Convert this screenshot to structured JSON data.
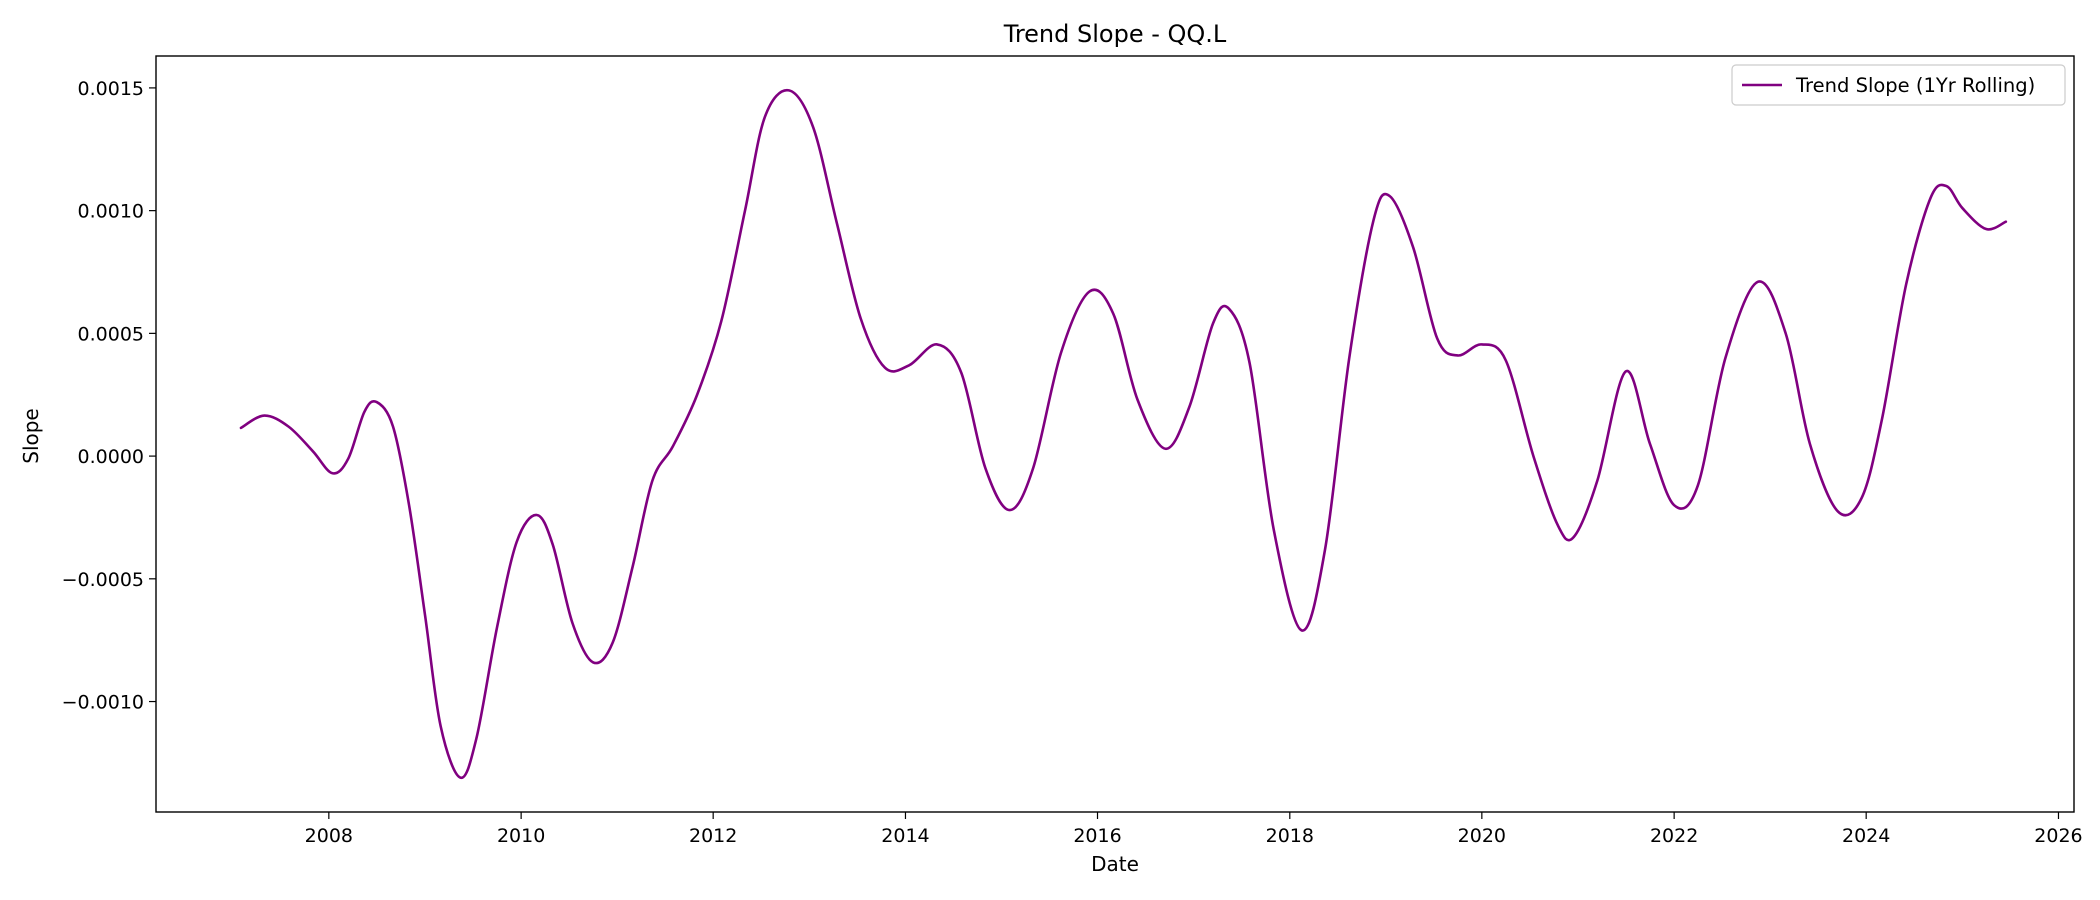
{
  "chart_data": {
    "type": "line",
    "title": "Trend Slope - QQ.L",
    "xlabel": "Date",
    "ylabel": "Slope",
    "x_scale": "time",
    "xlim": [
      "2006-03-15",
      "2026-03-01"
    ],
    "ylim": [
      -0.00145,
      0.00163
    ],
    "x_ticks": [
      "2008",
      "2010",
      "2012",
      "2014",
      "2016",
      "2018",
      "2020",
      "2022",
      "2024",
      "2026"
    ],
    "y_ticks": [
      {
        "value": -0.001,
        "label": "−0.0010"
      },
      {
        "value": -0.0005,
        "label": "−0.0005"
      },
      {
        "value": 0,
        "label": "0.0000"
      },
      {
        "value": 0.0005,
        "label": "0.0005"
      },
      {
        "value": 0.001,
        "label": "0.0010"
      },
      {
        "value": 0.0015,
        "label": "0.0015"
      }
    ],
    "grid": false,
    "legend": {
      "position": "upper right"
    },
    "series": [
      {
        "name": "Trend Slope (1Yr Rolling)",
        "color": "#800080",
        "points": [
          [
            "2007-02-01",
            0.000115
          ],
          [
            "2007-05-01",
            0.000165
          ],
          [
            "2007-08-01",
            0.00012
          ],
          [
            "2007-11-01",
            2e-05
          ],
          [
            "2008-01-15",
            -7e-05
          ],
          [
            "2008-03-15",
            -1e-05
          ],
          [
            "2008-05-15",
            0.00018
          ],
          [
            "2008-07-01",
            0.00022
          ],
          [
            "2008-09-01",
            0.00012
          ],
          [
            "2008-11-01",
            -0.0002
          ],
          [
            "2009-01-01",
            -0.00065
          ],
          [
            "2009-03-01",
            -0.0011
          ],
          [
            "2009-05-15",
            -0.00131
          ],
          [
            "2009-07-15",
            -0.00115
          ],
          [
            "2009-10-01",
            -0.0007
          ],
          [
            "2009-12-15",
            -0.00035
          ],
          [
            "2010-03-01",
            -0.00024
          ],
          [
            "2010-05-01",
            -0.00036
          ],
          [
            "2010-07-15",
            -0.00068
          ],
          [
            "2010-10-01",
            -0.00084
          ],
          [
            "2010-12-15",
            -0.00076
          ],
          [
            "2011-03-01",
            -0.00045
          ],
          [
            "2011-05-15",
            -0.0001
          ],
          [
            "2011-08-01",
            4e-05
          ],
          [
            "2011-11-01",
            0.00025
          ],
          [
            "2012-02-01",
            0.00055
          ],
          [
            "2012-05-01",
            0.001
          ],
          [
            "2012-07-15",
            0.00138
          ],
          [
            "2012-10-15",
            0.00149
          ],
          [
            "2013-01-15",
            0.00134
          ],
          [
            "2013-04-15",
            0.00095
          ],
          [
            "2013-07-15",
            0.00056
          ],
          [
            "2013-10-15",
            0.00036
          ],
          [
            "2014-01-15",
            0.00037
          ],
          [
            "2014-05-01",
            0.000455
          ],
          [
            "2014-08-01",
            0.00034
          ],
          [
            "2014-11-01",
            -5e-05
          ],
          [
            "2015-02-01",
            -0.00022
          ],
          [
            "2015-05-01",
            -5e-05
          ],
          [
            "2015-08-15",
            0.00042
          ],
          [
            "2015-12-01",
            0.00067
          ],
          [
            "2016-03-01",
            0.00058
          ],
          [
            "2016-06-01",
            0.00023
          ],
          [
            "2016-09-15",
            3e-05
          ],
          [
            "2016-12-15",
            0.0002
          ],
          [
            "2017-03-15",
            0.00054
          ],
          [
            "2017-05-15",
            0.0006
          ],
          [
            "2017-08-01",
            0.00038
          ],
          [
            "2017-11-01",
            -0.0003
          ],
          [
            "2018-02-15",
            -0.00071
          ],
          [
            "2018-05-15",
            -0.00038
          ],
          [
            "2018-08-15",
            0.0004
          ],
          [
            "2018-11-15",
            0.00096
          ],
          [
            "2019-01-15",
            0.00106
          ],
          [
            "2019-04-15",
            0.00085
          ],
          [
            "2019-07-15",
            0.00048
          ],
          [
            "2019-10-01",
            0.00041
          ],
          [
            "2020-01-01",
            0.000455
          ],
          [
            "2020-04-01",
            0.00039
          ],
          [
            "2020-07-15",
            0.0
          ],
          [
            "2020-10-15",
            -0.00028
          ],
          [
            "2020-12-15",
            -0.00033
          ],
          [
            "2021-03-15",
            -0.0001
          ],
          [
            "2021-07-01",
            0.000345
          ],
          [
            "2021-10-01",
            5e-05
          ],
          [
            "2022-01-01",
            -0.0002
          ],
          [
            "2022-04-01",
            -0.00012
          ],
          [
            "2022-07-15",
            0.0004
          ],
          [
            "2022-11-15",
            0.00071
          ],
          [
            "2023-03-01",
            0.0005
          ],
          [
            "2023-06-01",
            5e-05
          ],
          [
            "2023-09-15",
            -0.000225
          ],
          [
            "2023-12-15",
            -0.00017
          ],
          [
            "2024-03-01",
            0.00015
          ],
          [
            "2024-06-01",
            0.0007
          ],
          [
            "2024-09-01",
            0.00105
          ],
          [
            "2024-11-01",
            0.0011
          ],
          [
            "2025-01-01",
            0.00101
          ],
          [
            "2025-04-01",
            0.000925
          ],
          [
            "2025-06-15",
            0.000955
          ]
        ]
      }
    ]
  }
}
